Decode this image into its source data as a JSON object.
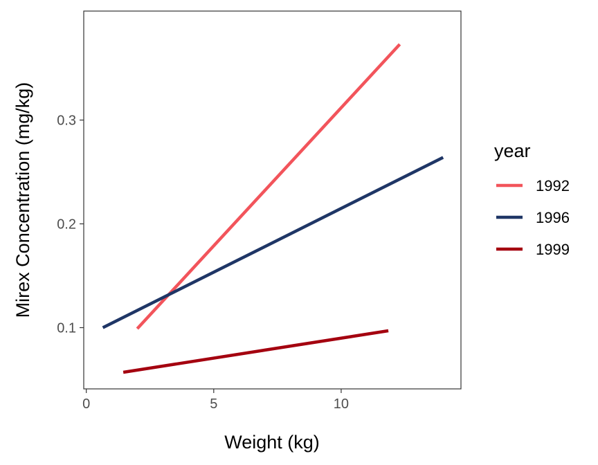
{
  "chart_data": {
    "type": "line",
    "xlabel": "Weight (kg)",
    "ylabel": "Mirex Concentration (mg/kg)",
    "xlim": [
      -0.1,
      14.7
    ],
    "ylim": [
      0.041,
      0.405
    ],
    "x_ticks": [
      0,
      5,
      10
    ],
    "y_ticks": [
      0.1,
      0.2,
      0.3
    ],
    "x_tick_labels": [
      "0",
      "5",
      "10"
    ],
    "y_tick_labels": [
      "0.1",
      "0.2",
      "0.3"
    ],
    "grid": false,
    "legend": {
      "title": "year",
      "position": "right"
    },
    "series": [
      {
        "name": "1992",
        "color": "#f2545b",
        "x": [
          2.0,
          12.3
        ],
        "y": [
          0.099,
          0.373
        ]
      },
      {
        "name": "1996",
        "color": "#1f3666",
        "x": [
          0.65,
          14.0
        ],
        "y": [
          0.1,
          0.264
        ]
      },
      {
        "name": "1999",
        "color": "#a4000f",
        "x": [
          1.45,
          11.85
        ],
        "y": [
          0.057,
          0.097
        ]
      }
    ]
  }
}
